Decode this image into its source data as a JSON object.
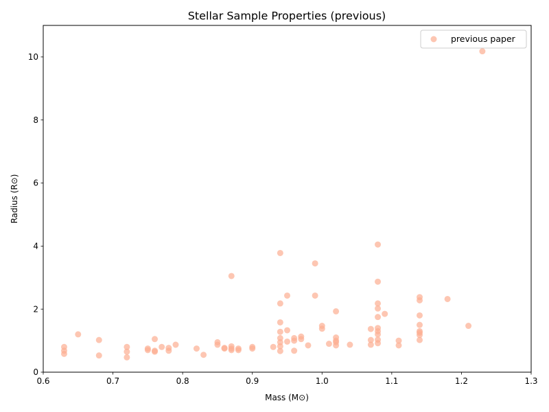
{
  "chart_data": {
    "type": "scatter",
    "title": "Stellar Sample Properties (previous)",
    "xlabel": "Mass (M⊙)",
    "ylabel": "Radius (R⊙)",
    "xlim": [
      0.6,
      1.3
    ],
    "ylim": [
      0,
      11
    ],
    "xticks": [
      "0.6",
      "0.7",
      "0.8",
      "0.9",
      "1.0",
      "1.1",
      "1.2",
      "1.3"
    ],
    "yticks": [
      "0",
      "2",
      "4",
      "6",
      "8",
      "10"
    ],
    "legend_position": "top-right",
    "grid": false,
    "series": [
      {
        "name": "previous paper",
        "color": "#fcae91",
        "points": [
          [
            0.63,
            0.8
          ],
          [
            0.63,
            0.68
          ],
          [
            0.63,
            0.58
          ],
          [
            0.65,
            1.2
          ],
          [
            0.68,
            1.02
          ],
          [
            0.68,
            0.53
          ],
          [
            0.72,
            0.8
          ],
          [
            0.72,
            0.65
          ],
          [
            0.72,
            0.47
          ],
          [
            0.75,
            0.75
          ],
          [
            0.75,
            0.7
          ],
          [
            0.76,
            1.05
          ],
          [
            0.76,
            0.68
          ],
          [
            0.76,
            0.65
          ],
          [
            0.77,
            0.8
          ],
          [
            0.78,
            0.77
          ],
          [
            0.78,
            0.68
          ],
          [
            0.79,
            0.87
          ],
          [
            0.82,
            0.75
          ],
          [
            0.83,
            0.55
          ],
          [
            0.85,
            0.95
          ],
          [
            0.85,
            0.87
          ],
          [
            0.86,
            0.77
          ],
          [
            0.86,
            0.75
          ],
          [
            0.87,
            3.05
          ],
          [
            0.87,
            0.82
          ],
          [
            0.87,
            0.75
          ],
          [
            0.87,
            0.7
          ],
          [
            0.88,
            0.75
          ],
          [
            0.88,
            0.7
          ],
          [
            0.9,
            0.8
          ],
          [
            0.9,
            0.75
          ],
          [
            0.93,
            0.8
          ],
          [
            0.94,
            3.78
          ],
          [
            0.94,
            2.18
          ],
          [
            0.94,
            1.58
          ],
          [
            0.94,
            1.28
          ],
          [
            0.94,
            1.08
          ],
          [
            0.94,
            0.95
          ],
          [
            0.94,
            0.82
          ],
          [
            0.94,
            0.67
          ],
          [
            0.95,
            2.43
          ],
          [
            0.95,
            1.33
          ],
          [
            0.95,
            0.97
          ],
          [
            0.96,
            1.08
          ],
          [
            0.96,
            1.0
          ],
          [
            0.96,
            0.68
          ],
          [
            0.97,
            1.13
          ],
          [
            0.97,
            1.05
          ],
          [
            0.98,
            0.85
          ],
          [
            0.99,
            3.45
          ],
          [
            0.99,
            2.43
          ],
          [
            1.0,
            1.47
          ],
          [
            1.0,
            1.38
          ],
          [
            1.01,
            0.9
          ],
          [
            1.02,
            1.93
          ],
          [
            1.02,
            1.1
          ],
          [
            1.02,
            1.0
          ],
          [
            1.02,
            0.95
          ],
          [
            1.02,
            0.85
          ],
          [
            1.04,
            0.87
          ],
          [
            1.07,
            1.37
          ],
          [
            1.07,
            1.02
          ],
          [
            1.07,
            0.87
          ],
          [
            1.08,
            4.05
          ],
          [
            1.08,
            2.87
          ],
          [
            1.08,
            2.18
          ],
          [
            1.08,
            2.02
          ],
          [
            1.08,
            1.75
          ],
          [
            1.08,
            1.4
          ],
          [
            1.08,
            1.3
          ],
          [
            1.08,
            1.2
          ],
          [
            1.08,
            1.03
          ],
          [
            1.08,
            0.92
          ],
          [
            1.09,
            1.85
          ],
          [
            1.11,
            1.0
          ],
          [
            1.11,
            0.85
          ],
          [
            1.14,
            2.38
          ],
          [
            1.14,
            2.28
          ],
          [
            1.14,
            1.8
          ],
          [
            1.14,
            1.5
          ],
          [
            1.14,
            1.3
          ],
          [
            1.14,
            1.25
          ],
          [
            1.14,
            1.18
          ],
          [
            1.14,
            1.02
          ],
          [
            1.18,
            2.32
          ],
          [
            1.21,
            1.47
          ],
          [
            1.23,
            10.18
          ]
        ]
      }
    ]
  }
}
